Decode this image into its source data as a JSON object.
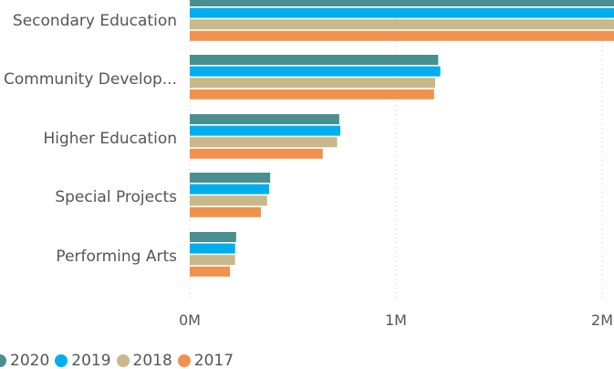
{
  "chart_data": {
    "type": "bar",
    "orientation": "horizontal",
    "categories": [
      "Secondary Education",
      "Community Develop...",
      "Higher Education",
      "Special Projects",
      "Performing Arts"
    ],
    "series": [
      {
        "name": "2020",
        "color": "#4A8F8F",
        "values": [
          2100000,
          1205000,
          725000,
          390000,
          225000
        ]
      },
      {
        "name": "2019",
        "color": "#00AEEF",
        "values": [
          2100000,
          1215000,
          730000,
          385000,
          220000
        ]
      },
      {
        "name": "2018",
        "color": "#C8B88A",
        "values": [
          2100000,
          1190000,
          715000,
          375000,
          220000
        ]
      },
      {
        "name": "2017",
        "color": "#F0924E",
        "values": [
          2100000,
          1185000,
          645000,
          345000,
          195000
        ]
      }
    ],
    "x_ticks": [
      {
        "value": 0,
        "label": "0M"
      },
      {
        "value": 1000000,
        "label": "1M"
      },
      {
        "value": 2000000,
        "label": "2M"
      }
    ],
    "xlim": [
      0,
      2000000
    ],
    "grid": true,
    "legend_position": "bottom-left"
  }
}
